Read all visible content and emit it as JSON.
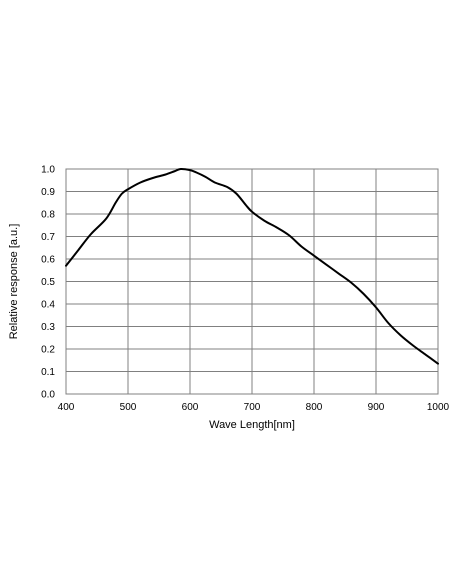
{
  "chart_data": {
    "type": "line",
    "title": "",
    "xlabel": "Wave Length[nm]",
    "ylabel": "Relative response [a.u.]",
    "xlim": [
      400,
      1000
    ],
    "ylim": [
      0.0,
      1.0
    ],
    "x_ticks": [
      "400",
      "500",
      "600",
      "700",
      "800",
      "900",
      "1000"
    ],
    "y_ticks": [
      "0.0",
      "0.1",
      "0.2",
      "0.3",
      "0.4",
      "0.5",
      "0.6",
      "0.7",
      "0.8",
      "0.9",
      "1.0"
    ],
    "grid": true,
    "legend": "none",
    "series": [
      {
        "color": "#000000",
        "x": [
          400,
          420,
          440,
          465,
          480,
          490,
          500,
          520,
          540,
          560,
          575,
          585,
          600,
          610,
          625,
          640,
          660,
          675,
          690,
          700,
          720,
          740,
          760,
          780,
          800,
          820,
          840,
          860,
          880,
          900,
          920,
          940,
          960,
          980,
          1000
        ],
        "y": [
          0.57,
          0.64,
          0.71,
          0.78,
          0.85,
          0.89,
          0.91,
          0.94,
          0.96,
          0.975,
          0.99,
          1.0,
          0.995,
          0.985,
          0.965,
          0.94,
          0.92,
          0.89,
          0.84,
          0.81,
          0.77,
          0.74,
          0.705,
          0.655,
          0.615,
          0.575,
          0.535,
          0.495,
          0.445,
          0.385,
          0.315,
          0.26,
          0.215,
          0.175,
          0.135
        ]
      }
    ]
  }
}
